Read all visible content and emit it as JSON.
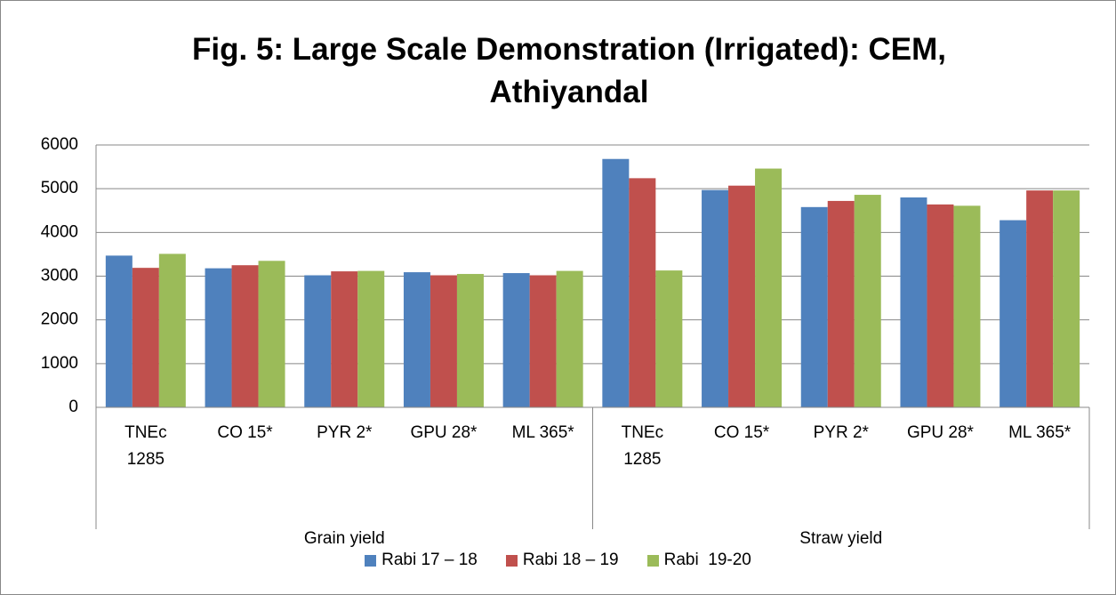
{
  "chart_data": {
    "type": "bar",
    "title": "Fig. 5: Large Scale Demonstration (Irrigated): CEM, Athiyandal",
    "groups": [
      {
        "label": "Grain yield",
        "categories": [
          "TNEc 1285",
          "CO 15*",
          "PYR 2*",
          "GPU 28*",
          "ML 365*"
        ]
      },
      {
        "label": "Straw yield",
        "categories": [
          "TNEc 1285",
          "CO 15*",
          "PYR 2*",
          "GPU 28*",
          "ML 365*"
        ]
      }
    ],
    "series": [
      {
        "name": "Rabi 17 – 18",
        "color": "#4f81bd",
        "values": [
          3470,
          3180,
          3020,
          3090,
          3070,
          5680,
          4970,
          4580,
          4800,
          4280
        ]
      },
      {
        "name": "Rabi 18 – 19",
        "color": "#c0504d",
        "values": [
          3190,
          3250,
          3110,
          3020,
          3020,
          5240,
          5070,
          4720,
          4640,
          4960
        ]
      },
      {
        "name": "Rabi  19-20",
        "color": "#9bbb59",
        "values": [
          3510,
          3350,
          3120,
          3050,
          3120,
          3130,
          5460,
          4860,
          4610,
          4960
        ]
      }
    ],
    "ylim": [
      0,
      6000
    ],
    "yticks": [
      0,
      1000,
      2000,
      3000,
      4000,
      5000,
      6000
    ],
    "grid": true,
    "legend": "bottom"
  }
}
